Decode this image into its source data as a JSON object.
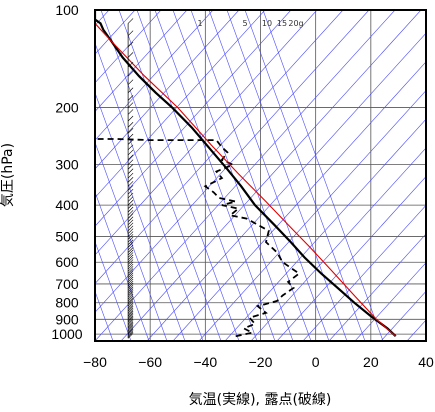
{
  "chart_data": {
    "type": "line",
    "title": "",
    "xlabel": "気温(実線), 露点(破線)",
    "ylabel": "気圧(hPa)",
    "xlim": [
      -80,
      40
    ],
    "ylim": [
      1050,
      100
    ],
    "y_scale": "log",
    "x_ticks": [
      "−80",
      "−60",
      "−40",
      "−20",
      "0",
      "20",
      "40"
    ],
    "x_tick_values": [
      -80,
      -60,
      -40,
      -20,
      0,
      20,
      40
    ],
    "y_ticks": [
      "100",
      "200",
      "300",
      "400",
      "500",
      "600",
      "700",
      "800",
      "900",
      "1000"
    ],
    "y_tick_values": [
      100,
      200,
      300,
      400,
      500,
      600,
      700,
      800,
      900,
      1000
    ],
    "mixing_ratio_labels": [
      "1",
      "5",
      "10",
      "15",
      "20g"
    ],
    "mixing_ratio_values": [
      1,
      5,
      10,
      15,
      20
    ],
    "grid": true,
    "series": [
      {
        "style": "solid-black",
        "points": [
          [
            -80,
            100
          ],
          [
            -80,
            107
          ],
          [
            -78,
            110
          ],
          [
            -77,
            115
          ],
          [
            -74,
            125
          ],
          [
            -70,
            140
          ],
          [
            -64,
            160
          ],
          [
            -58,
            180
          ],
          [
            -52,
            200
          ],
          [
            -45,
            230
          ],
          [
            -38,
            270
          ],
          [
            -32,
            310
          ],
          [
            -27,
            350
          ],
          [
            -22,
            400
          ],
          [
            -15,
            460
          ],
          [
            -9,
            520
          ],
          [
            -4,
            580
          ],
          [
            2,
            650
          ],
          [
            8,
            720
          ],
          [
            14,
            800
          ],
          [
            20,
            880
          ],
          [
            26,
            960
          ],
          [
            29,
            1015
          ]
        ]
      },
      {
        "style": "dashed-black",
        "points": [
          [
            -29,
            1015
          ],
          [
            -23,
            990
          ],
          [
            -26,
            960
          ],
          [
            -22,
            930
          ],
          [
            -24,
            890
          ],
          [
            -18,
            860
          ],
          [
            -21,
            820
          ],
          [
            -14,
            790
          ],
          [
            -12,
            760
          ],
          [
            -8,
            720
          ],
          [
            -10,
            690
          ],
          [
            -6,
            650
          ],
          [
            -12,
            600
          ],
          [
            -14,
            560
          ],
          [
            -18,
            520
          ],
          [
            -17,
            480
          ],
          [
            -21,
            460
          ],
          [
            -25,
            440
          ],
          [
            -31,
            430
          ],
          [
            -28,
            410
          ],
          [
            -34,
            400
          ],
          [
            -29,
            390
          ],
          [
            -35,
            380
          ],
          [
            -37,
            365
          ],
          [
            -40,
            350
          ],
          [
            -34,
            330
          ],
          [
            -36,
            315
          ],
          [
            -30,
            300
          ],
          [
            -34,
            290
          ],
          [
            -32,
            275
          ],
          [
            -34,
            265
          ],
          [
            -36,
            252
          ],
          [
            -60,
            252
          ],
          [
            -72,
            250
          ],
          [
            -80,
            250
          ]
        ]
      },
      {
        "style": "solid-red",
        "points": [
          [
            29,
            1015
          ],
          [
            22,
            900
          ],
          [
            14,
            760
          ],
          [
            6,
            640
          ],
          [
            -2,
            540
          ],
          [
            -10,
            460
          ],
          [
            -18,
            390
          ],
          [
            -28,
            320
          ],
          [
            -38,
            260
          ],
          [
            -50,
            200
          ],
          [
            -62,
            160
          ],
          [
            -74,
            125
          ],
          [
            -80,
            110
          ]
        ]
      }
    ],
    "wind_barbs": {
      "x": -68,
      "note": "",
      "pressures": []
    }
  }
}
